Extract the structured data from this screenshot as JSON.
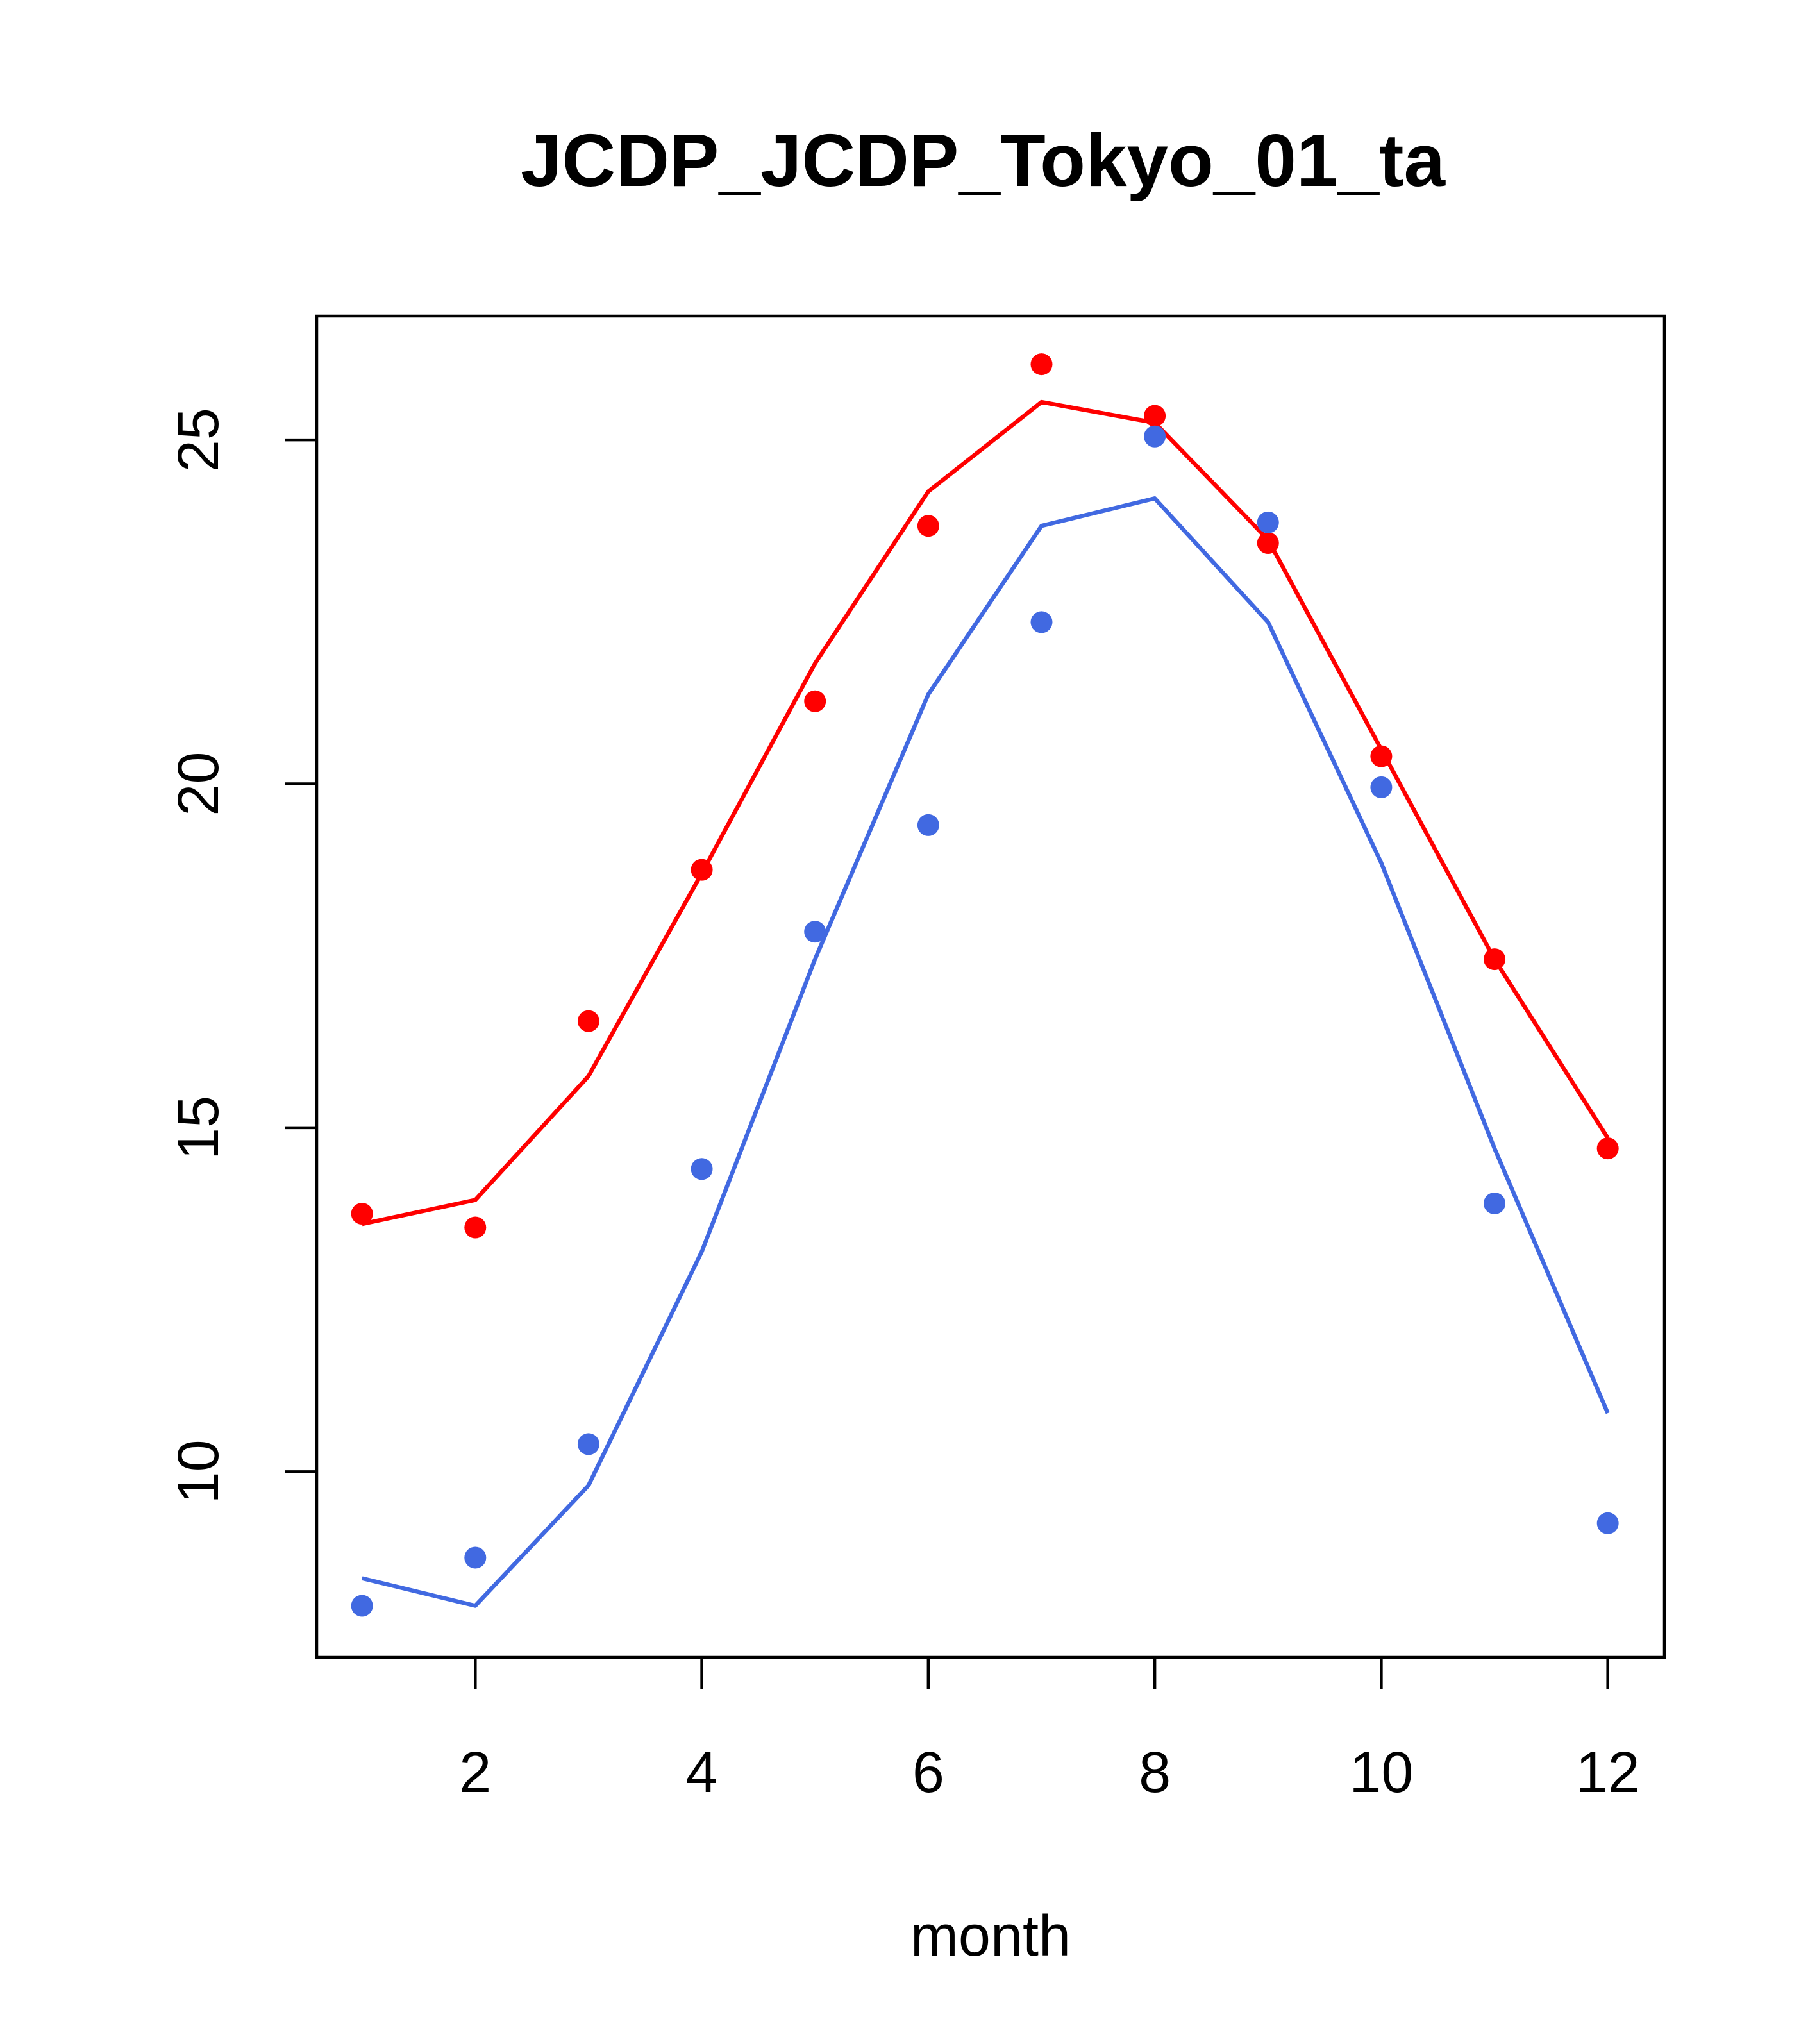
{
  "chart_data": {
    "type": "line",
    "title": "JCDP_JCDP_Tokyo_01_ta",
    "xlabel": "month",
    "ylabel": "",
    "xlim": [
      0.6,
      12.5
    ],
    "ylim": [
      7.3,
      26.8
    ],
    "x_ticks": [
      2,
      4,
      6,
      8,
      10,
      12
    ],
    "y_ticks": [
      10,
      15,
      20,
      25
    ],
    "grid": false,
    "legend": "none",
    "x": [
      1,
      2,
      3,
      4,
      5,
      6,
      7,
      8,
      9,
      10,
      11,
      12
    ],
    "series": [
      {
        "color": "#ff0000",
        "line": [
          13.6,
          13.95,
          15.75,
          18.7,
          21.75,
          24.25,
          25.55,
          25.25,
          23.55,
          20.5,
          17.45,
          14.85
        ],
        "points": [
          13.75,
          13.55,
          16.55,
          18.75,
          21.2,
          23.75,
          26.1,
          25.35,
          23.5,
          20.4,
          17.45,
          14.7
        ]
      },
      {
        "color": "#4169e1",
        "line": [
          8.45,
          8.05,
          9.8,
          13.2,
          17.45,
          21.3,
          23.75,
          24.15,
          22.35,
          18.85,
          14.7,
          10.85
        ],
        "points": [
          8.05,
          8.75,
          10.4,
          14.4,
          17.85,
          19.4,
          22.35,
          25.05,
          23.8,
          19.95,
          13.9,
          9.25
        ]
      }
    ]
  }
}
